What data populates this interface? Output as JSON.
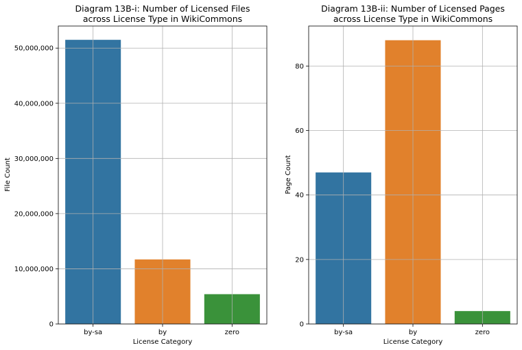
{
  "chart_data": [
    {
      "type": "bar",
      "title": [
        "Diagram 13B-i: Number of Licensed Files",
        "across License Type in WikiCommons"
      ],
      "xlabel": "License Category",
      "ylabel": "File Count",
      "categories": [
        "by-sa",
        "by",
        "zero"
      ],
      "values": [
        51500000,
        11700000,
        5400000
      ],
      "colors": [
        "#3274a1",
        "#e1812c",
        "#3a923a"
      ],
      "ylim": [
        0,
        54000000
      ],
      "yticks": [
        0,
        10000000,
        20000000,
        30000000,
        40000000,
        50000000
      ],
      "yticklabels": [
        "0",
        "10,000,000",
        "20,000,000",
        "30,000,000",
        "40,000,000",
        "50,000,000"
      ],
      "grid": true
    },
    {
      "type": "bar",
      "title": [
        "Diagram 13B-ii: Number of Licensed Pages",
        "across License Type in WikiCommons"
      ],
      "xlabel": "License Category",
      "ylabel": "Page Count",
      "categories": [
        "by-sa",
        "by",
        "zero"
      ],
      "values": [
        47,
        88,
        4
      ],
      "colors": [
        "#3274a1",
        "#e1812c",
        "#3a923a"
      ],
      "ylim": [
        0,
        92.4
      ],
      "yticks": [
        0,
        20,
        40,
        60,
        80
      ],
      "yticklabels": [
        "0",
        "20",
        "40",
        "60",
        "80"
      ],
      "grid": true
    }
  ]
}
